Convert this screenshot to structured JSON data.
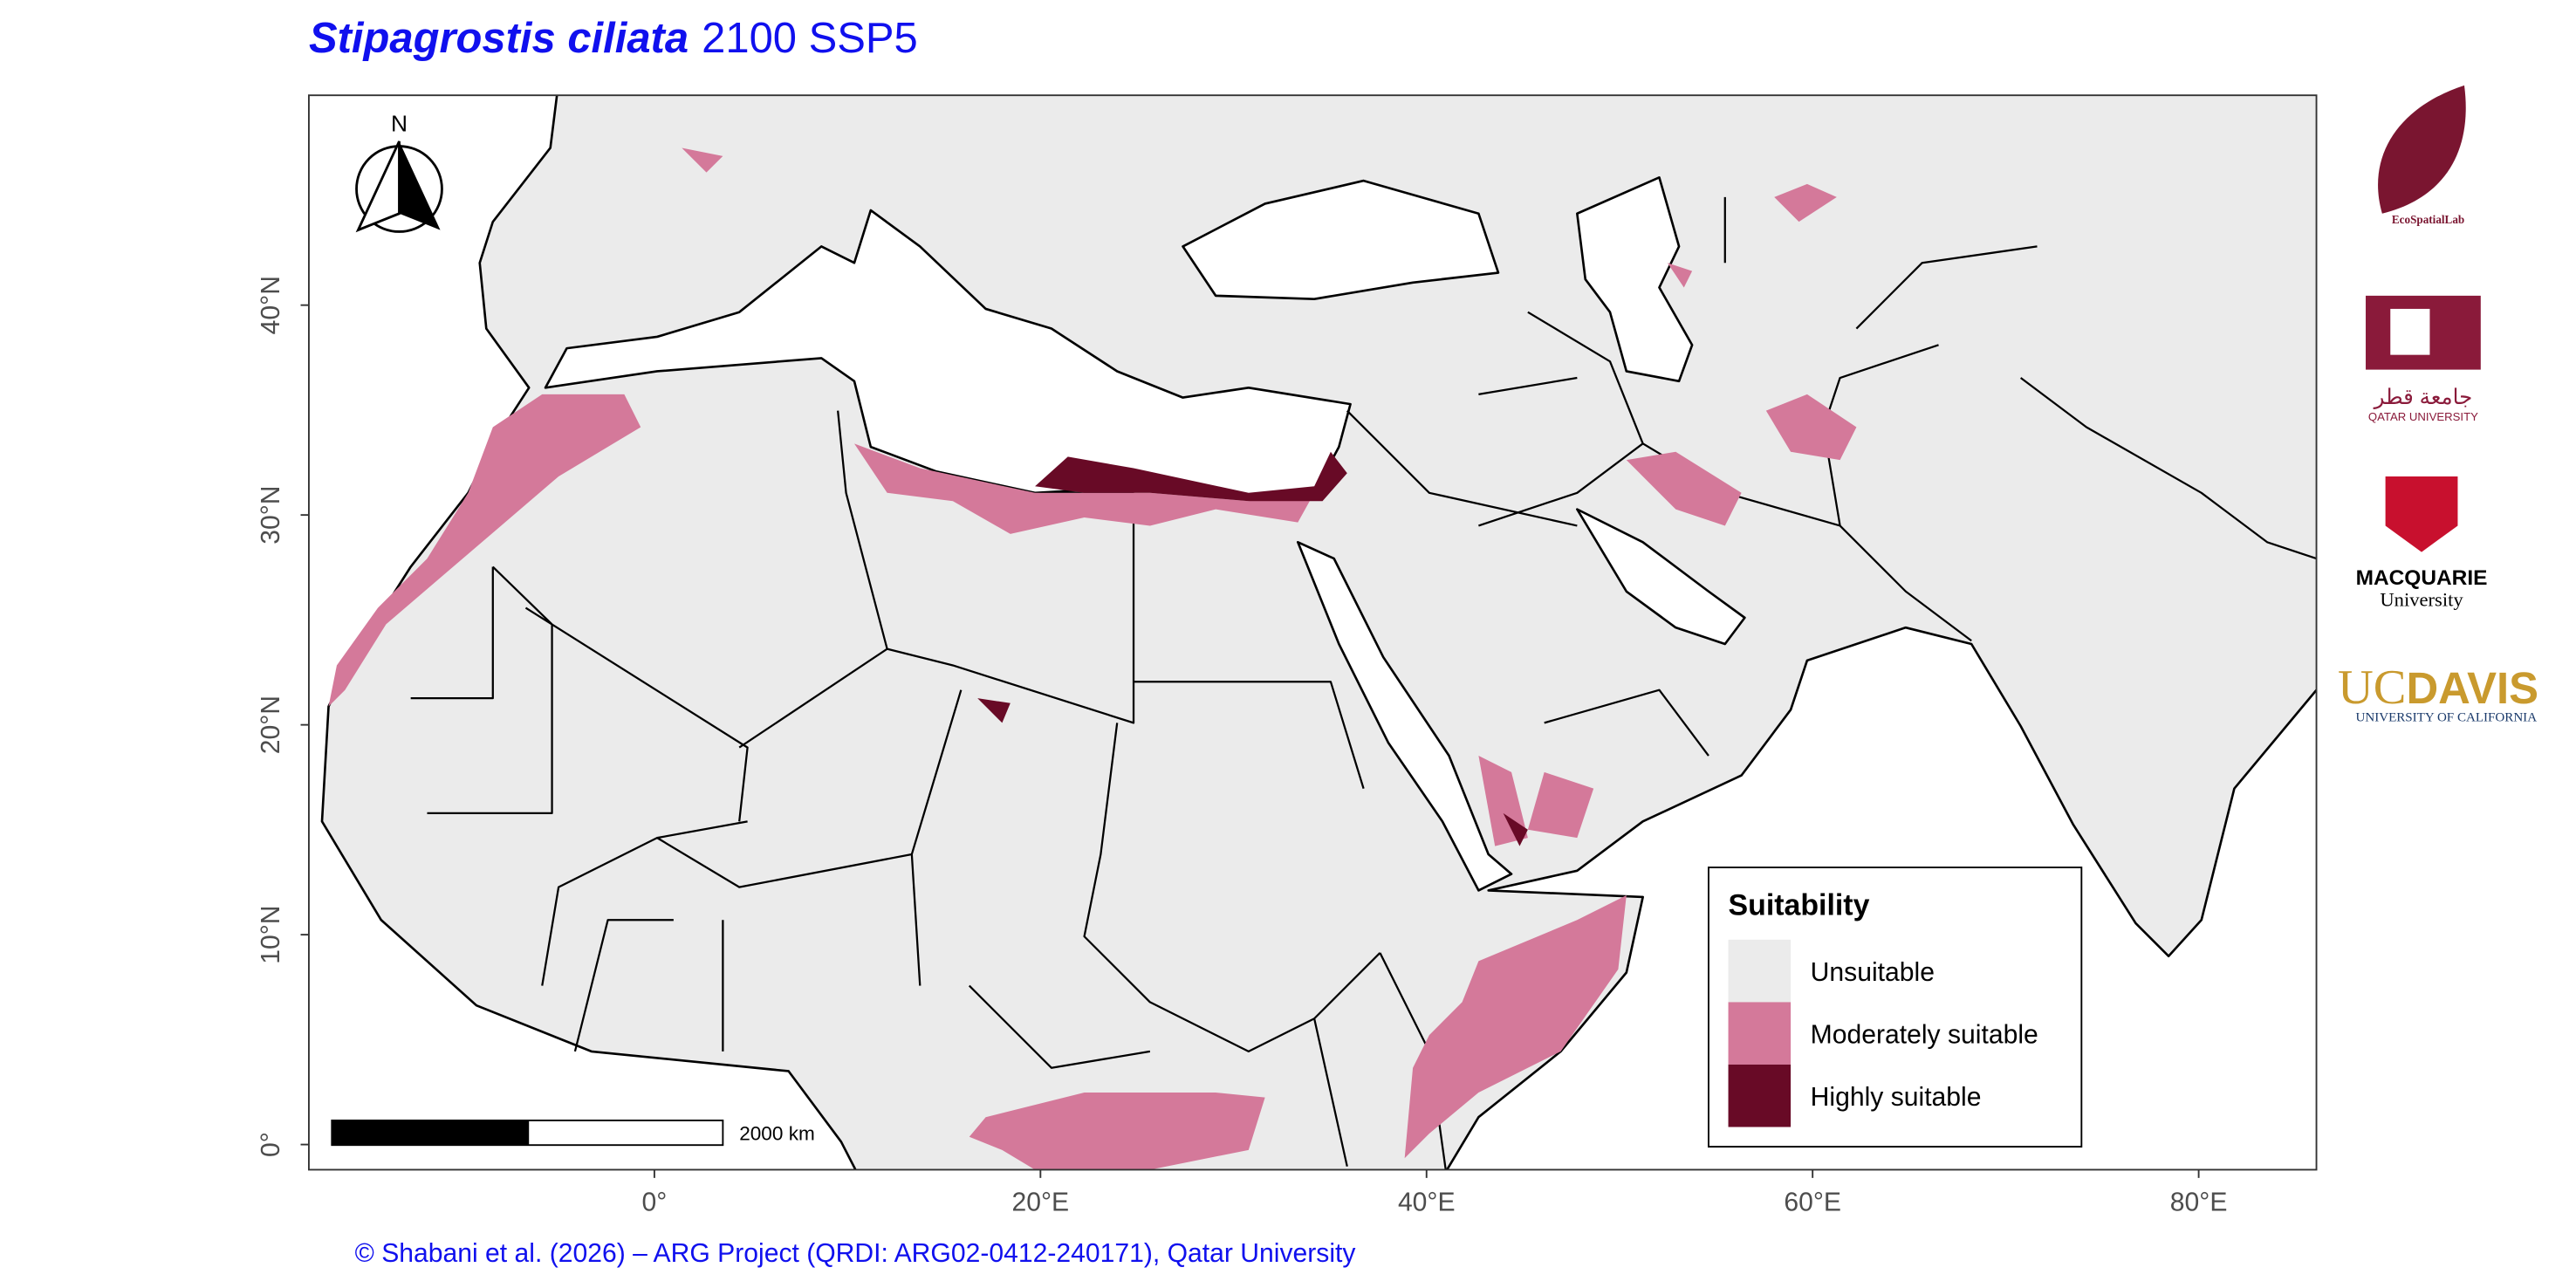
{
  "title": {
    "species": "Stipagrostis ciliata",
    "scenario": "2100 SSP5"
  },
  "map": {
    "xlim": [
      -17.9,
      86.1
    ],
    "ylim": [
      -1.2,
      50
    ],
    "xticks": [
      {
        "value": 0,
        "label": "0°"
      },
      {
        "value": 20,
        "label": "20°E"
      },
      {
        "value": 40,
        "label": "40°E"
      },
      {
        "value": 60,
        "label": "60°E"
      },
      {
        "value": 80,
        "label": "80°E"
      }
    ],
    "yticks": [
      {
        "value": 0,
        "label": "0°"
      },
      {
        "value": 10,
        "label": "10°N"
      },
      {
        "value": 20,
        "label": "20°N"
      },
      {
        "value": 30,
        "label": "30°N"
      },
      {
        "value": 40,
        "label": "40°N"
      }
    ]
  },
  "north_arrow": "N",
  "scale_bar": "2000 km",
  "legend": {
    "title": "Suitability",
    "items": [
      {
        "label": "Unsuitable",
        "color": "#ebebeb"
      },
      {
        "label": "Moderately suitable",
        "color": "#d4799a"
      },
      {
        "label": "Highly suitable",
        "color": "#680a26"
      }
    ]
  },
  "footer": "© Shabani et al. (2026) – ARG Project (QRDI: ARG02-0412-240171), Qatar University",
  "logos": {
    "ecospatial": "EcoSpatialLab",
    "qatar_arabic": "جامعة قطر",
    "qatar": "QATAR UNIVERSITY",
    "macquarie": "MACQUARIE",
    "macquarie_sub": "University",
    "ucdavis_uc": "UC",
    "ucdavis_davis": "DAVIS",
    "ucdavis_sub": "UNIVERSITY OF CALIFORNIA"
  }
}
